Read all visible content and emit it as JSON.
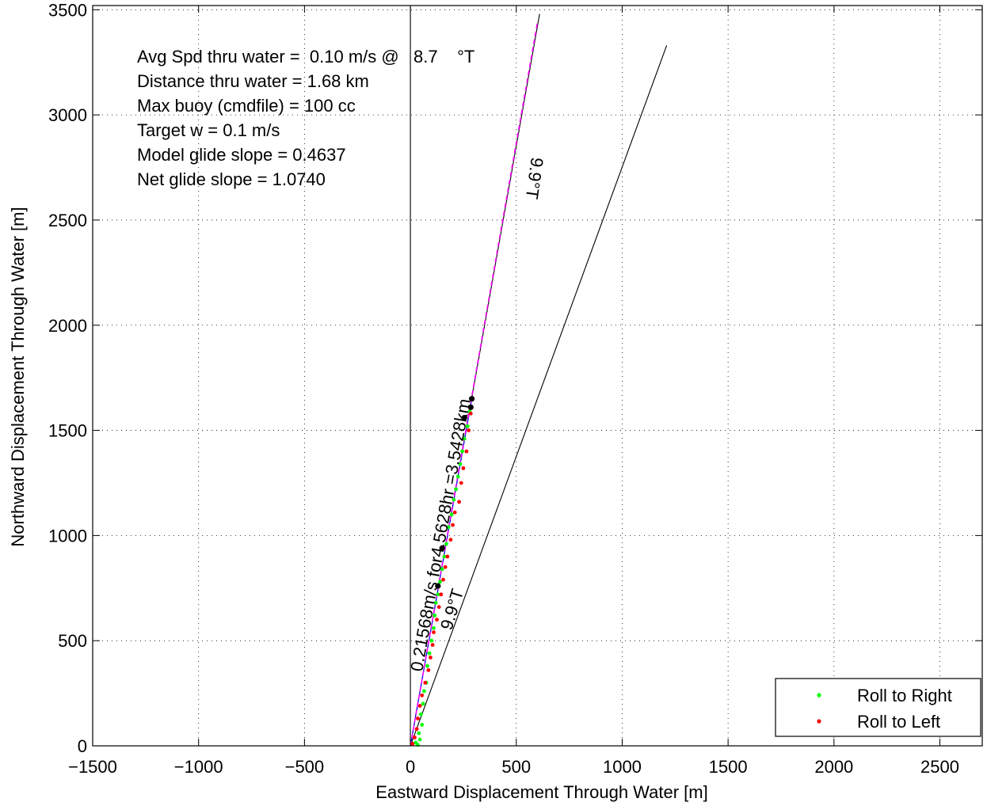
{
  "chart_data": {
    "type": "scatter",
    "xlabel": "Eastward Displacement Through Water [m]",
    "ylabel": "Northward Displacement Through Water [m]",
    "xlim": [
      -1500,
      2700
    ],
    "ylim": [
      0,
      3520
    ],
    "xticks": [
      -1500,
      -1000,
      -500,
      0,
      500,
      1000,
      1500,
      2000,
      2500
    ],
    "xtick_labels": [
      "−1500",
      "−1000",
      "−500",
      "0",
      "500",
      "1000",
      "1500",
      "2000",
      "2500"
    ],
    "yticks": [
      0,
      500,
      1000,
      1500,
      2000,
      2500,
      3000,
      3500
    ],
    "ytick_labels": [
      "0",
      "500",
      "1000",
      "1500",
      "2000",
      "2500",
      "3000",
      "3500"
    ],
    "grid": true,
    "legend_position": "bottom-right",
    "stats_lines": [
      "Avg Spd thru water =  0.10 m/s @   8.7    °T",
      "Distance thru water =  1.68 km",
      "Max buoy (cmdfile) = 100 cc",
      "Target w = 0.1 m/s",
      "Model glide slope = 0.4637",
      "Net glide slope = 1.0740"
    ],
    "annotations": {
      "heading_top": "9.9°T",
      "heading_bottom": "9.9°T",
      "speed_label": "0.21568m/s for4.5628hr =3.5428km"
    },
    "lines": [
      {
        "x": [
          0,
          0
        ],
        "y": [
          0,
          3520
        ],
        "color": "#000000"
      },
      {
        "x": [
          0,
          610
        ],
        "y": [
          0,
          3480
        ],
        "color": "#000000"
      },
      {
        "x": [
          0,
          1210
        ],
        "y": [
          0,
          3330
        ],
        "color": "#000000"
      },
      {
        "x": [
          0,
          290
        ],
        "y": [
          0,
          1650
        ],
        "color": "#0000ff"
      },
      {
        "x": [
          0,
          600
        ],
        "y": [
          0,
          3440
        ],
        "color": "#ff00ff",
        "dashed": true
      }
    ],
    "series": [
      {
        "name": "Roll to Right",
        "color": "#00ff00",
        "x": [
          35,
          25,
          45,
          40,
          55,
          50,
          60,
          65,
          75,
          80,
          90,
          100,
          110,
          115,
          120,
          130,
          140,
          150,
          160,
          170,
          180,
          195,
          205,
          215,
          225,
          235,
          245,
          255,
          270,
          280
        ],
        "y": [
          5,
          15,
          30,
          60,
          100,
          150,
          200,
          260,
          300,
          380,
          440,
          500,
          560,
          620,
          680,
          720,
          780,
          840,
          900,
          960,
          1040,
          1100,
          1170,
          1220,
          1280,
          1340,
          1400,
          1460,
          1520,
          1590
        ]
      },
      {
        "name": "Roll to Left",
        "color": "#ff0000",
        "x": [
          10,
          20,
          30,
          35,
          45,
          55,
          70,
          85,
          95,
          105,
          110,
          125,
          135,
          145,
          155,
          165,
          175,
          190,
          200,
          210,
          230,
          240,
          250,
          265,
          275,
          285
        ],
        "y": [
          10,
          40,
          80,
          130,
          190,
          240,
          300,
          360,
          420,
          480,
          540,
          600,
          660,
          720,
          790,
          850,
          900,
          980,
          1050,
          1110,
          1160,
          1250,
          1320,
          1400,
          1500,
          1580
        ]
      }
    ],
    "markers": [
      {
        "x": 130,
        "y": 760,
        "color": "#000000"
      },
      {
        "x": 150,
        "y": 940,
        "color": "#000000"
      },
      {
        "x": 255,
        "y": 1560,
        "color": "#000000"
      },
      {
        "x": 285,
        "y": 1610,
        "color": "#000000"
      },
      {
        "x": 290,
        "y": 1650,
        "color": "#000000"
      }
    ]
  }
}
